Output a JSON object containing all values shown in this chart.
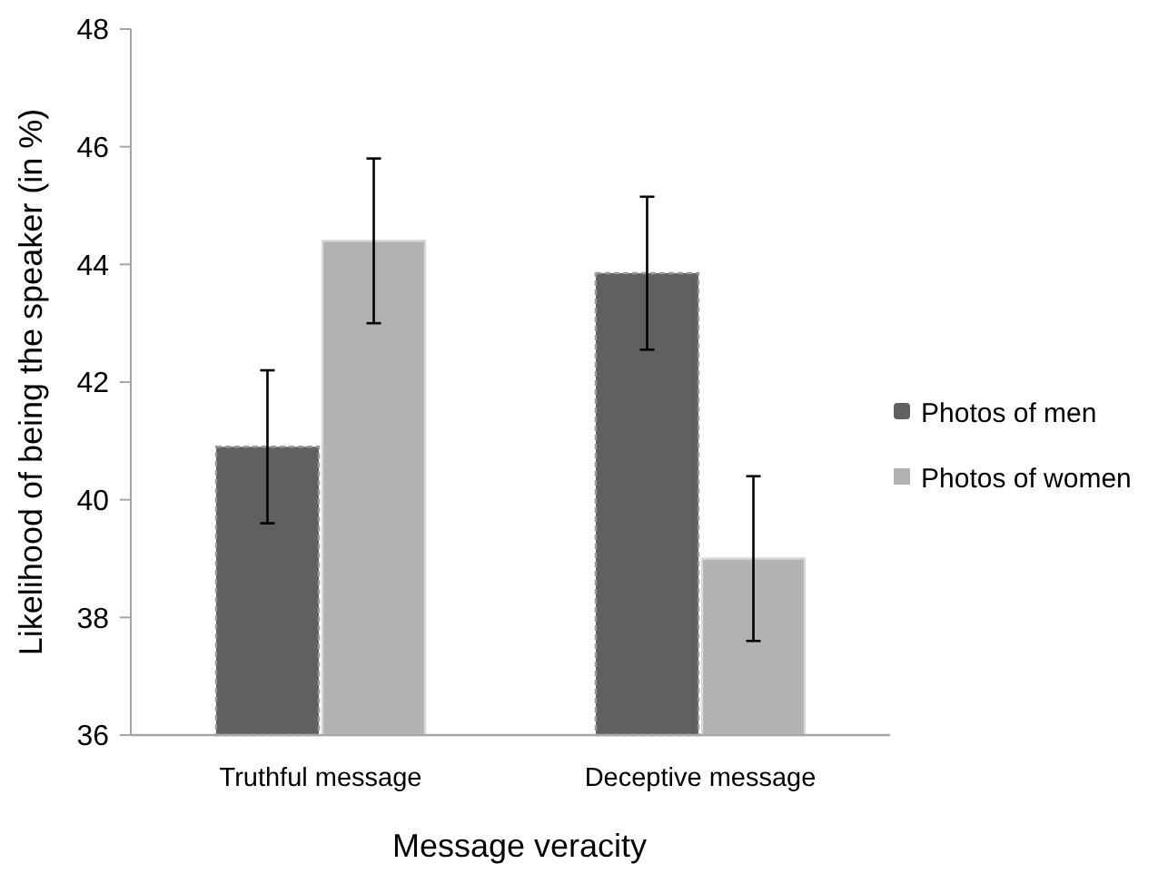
{
  "chart_data": {
    "type": "bar",
    "xlabel": "Message veracity",
    "ylabel": "Likelihood of being the speaker (in %)",
    "categories": [
      "Truthful message",
      "Deceptive message"
    ],
    "series": [
      {
        "name": "Photos of men",
        "color": "#606060",
        "values": [
          40.9,
          43.85
        ],
        "errors": [
          1.3,
          1.3
        ]
      },
      {
        "name": "Photos of women",
        "color": "#b2b2b2",
        "values": [
          44.4,
          39.0
        ],
        "errors": [
          1.4,
          1.4
        ]
      }
    ],
    "ylim": [
      36,
      48
    ],
    "yticks": [
      36,
      38,
      40,
      42,
      44,
      46,
      48
    ],
    "legend": "right"
  }
}
